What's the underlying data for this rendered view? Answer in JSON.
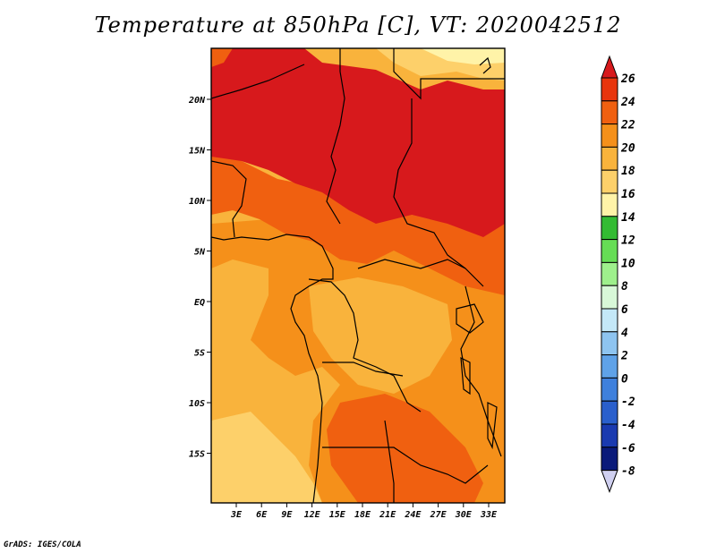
{
  "title": "Temperature at 850hPa [C], VT: 2020042512",
  "credit": "GrADS: IGES/COLA",
  "map": {
    "lon_ticks": [
      "3E",
      "6E",
      "9E",
      "12E",
      "15E",
      "18E",
      "21E",
      "24E",
      "27E",
      "30E",
      "33E"
    ],
    "lat_ticks": [
      "20N",
      "15N",
      "10N",
      "5N",
      "EQ",
      "5S",
      "10S",
      "15S"
    ]
  },
  "colorbar": {
    "labels": [
      "26",
      "24",
      "22",
      "20",
      "18",
      "16",
      "14",
      "12",
      "10",
      "8",
      "6",
      "4",
      "2",
      "0",
      "-2",
      "-4",
      "-6",
      "-8"
    ],
    "colors": [
      "#d7191c",
      "#e8350d",
      "#f06010",
      "#f5901a",
      "#f9b33c",
      "#fdd06a",
      "#fff3a8",
      "#33bb33",
      "#66dd55",
      "#9ef08c",
      "#d8f8d8",
      "#c4e8f8",
      "#8ec4f0",
      "#5fa2e8",
      "#3f80dc",
      "#2a5fcc",
      "#1a3ab0",
      "#0a1a7a"
    ]
  }
}
